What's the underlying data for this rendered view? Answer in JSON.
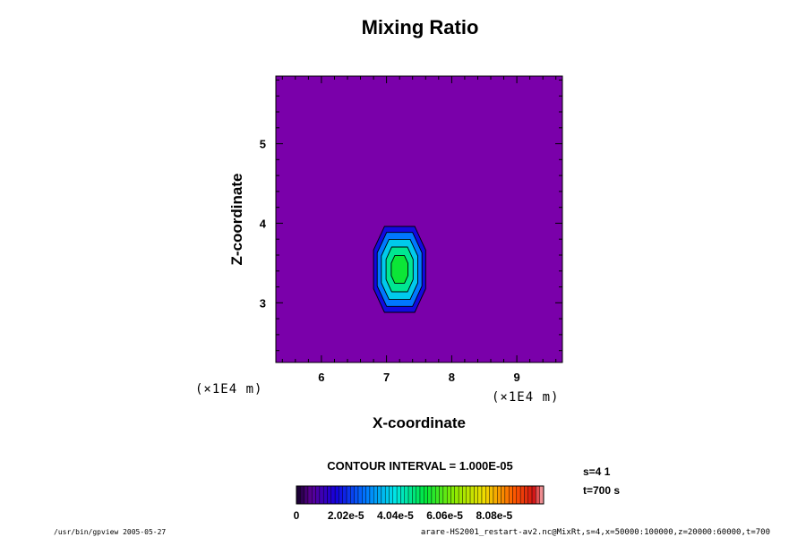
{
  "chart_data": {
    "type": "contour",
    "title": "Mixing Ratio",
    "xlabel": "X-coordinate",
    "ylabel": "Z-coordinate",
    "x_unit": "(×1E4 m)",
    "y_unit": "(×1E4 m)",
    "xlim": [
      5.3,
      9.7
    ],
    "ylim": [
      2.25,
      5.85
    ],
    "x_ticks": [
      6,
      7,
      8,
      9
    ],
    "y_ticks": [
      3,
      4,
      5
    ],
    "x_tick_labels": [
      "6",
      "7",
      "8",
      "9"
    ],
    "y_tick_labels": [
      "3",
      "4",
      "5"
    ],
    "background_color": "#7a00aa",
    "contour_interval_text": "CONTOUR INTERVAL = 1.000E-05",
    "contour_levels": [
      0,
      1e-05,
      2e-05,
      3e-05,
      4e-05,
      5e-05
    ],
    "blob": {
      "center_x": 7.2,
      "center_z": 3.42,
      "extent_x": [
        6.8,
        7.6
      ],
      "extent_z": [
        2.9,
        3.98
      ],
      "peak_value": 5e-05
    },
    "colorbar": {
      "min": 0,
      "max": 0.000101,
      "tick_labels": [
        "0",
        "2.02e-5",
        "4.04e-5",
        "6.06e-5",
        "8.08e-5"
      ],
      "tick_values": [
        0,
        2.02e-05,
        4.04e-05,
        6.06e-05,
        8.08e-05
      ],
      "num_bins": 64
    },
    "side_info": [
      "s=4 1",
      "t=700 s"
    ],
    "footer_left": "/usr/bin/gpview 2005-05-27",
    "footer_right": "arare-HS2001_restart-av2.nc@MixRt,s=4,x=50000:100000,z=20000:60000,t=700"
  }
}
